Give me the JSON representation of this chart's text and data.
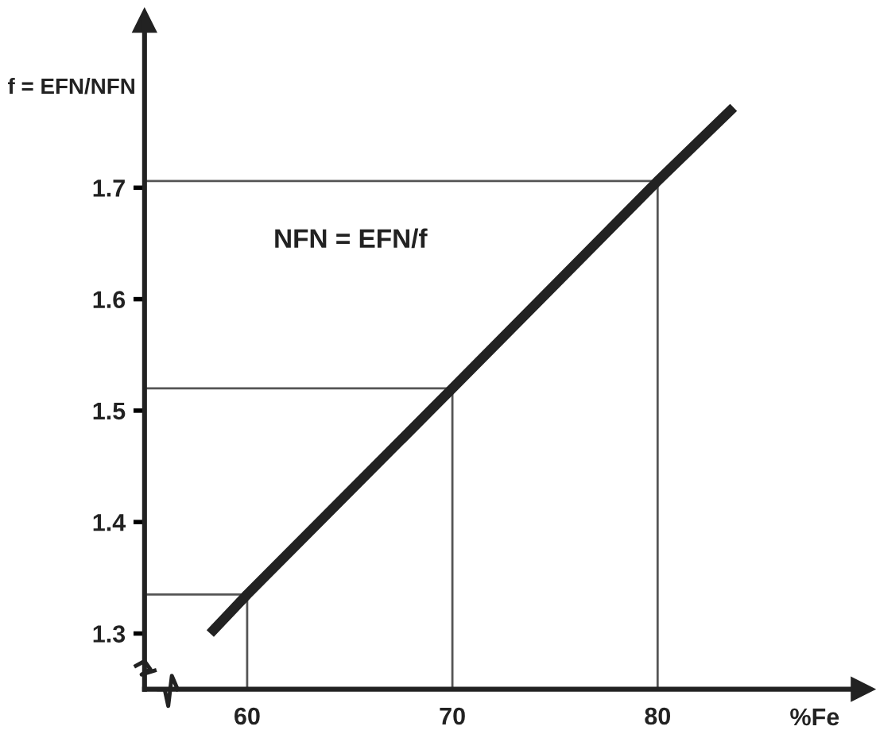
{
  "chart_data": {
    "type": "line",
    "xlabel": "%Fe",
    "ylabel": "f = EFN/NFN",
    "annotations": [
      "NFN = EFN/f"
    ],
    "xlim": [
      55,
      90
    ],
    "ylim": [
      1.25,
      1.85
    ],
    "xticks": [
      60,
      70,
      80
    ],
    "yticks": [
      1.3,
      1.4,
      1.5,
      1.6,
      1.7
    ],
    "grid": false,
    "marker": "none",
    "line_style": "solid",
    "series": [
      {
        "color": "#222222",
        "x": [
          58.2,
          60,
          70,
          80,
          83.7
        ],
        "values": [
          1.3,
          1.335,
          1.52,
          1.706,
          1.772
        ]
      },
      {
        "color": "#555555",
        "x": [
          55,
          60,
          60
        ],
        "values": [
          1.335,
          1.335,
          1.25
        ]
      },
      {
        "color": "#555555",
        "x": [
          55,
          70,
          70
        ],
        "values": [
          1.52,
          1.52,
          1.25
        ]
      },
      {
        "color": "#555555",
        "x": [
          55,
          80,
          80
        ],
        "values": [
          1.706,
          1.706,
          1.25
        ]
      }
    ]
  }
}
